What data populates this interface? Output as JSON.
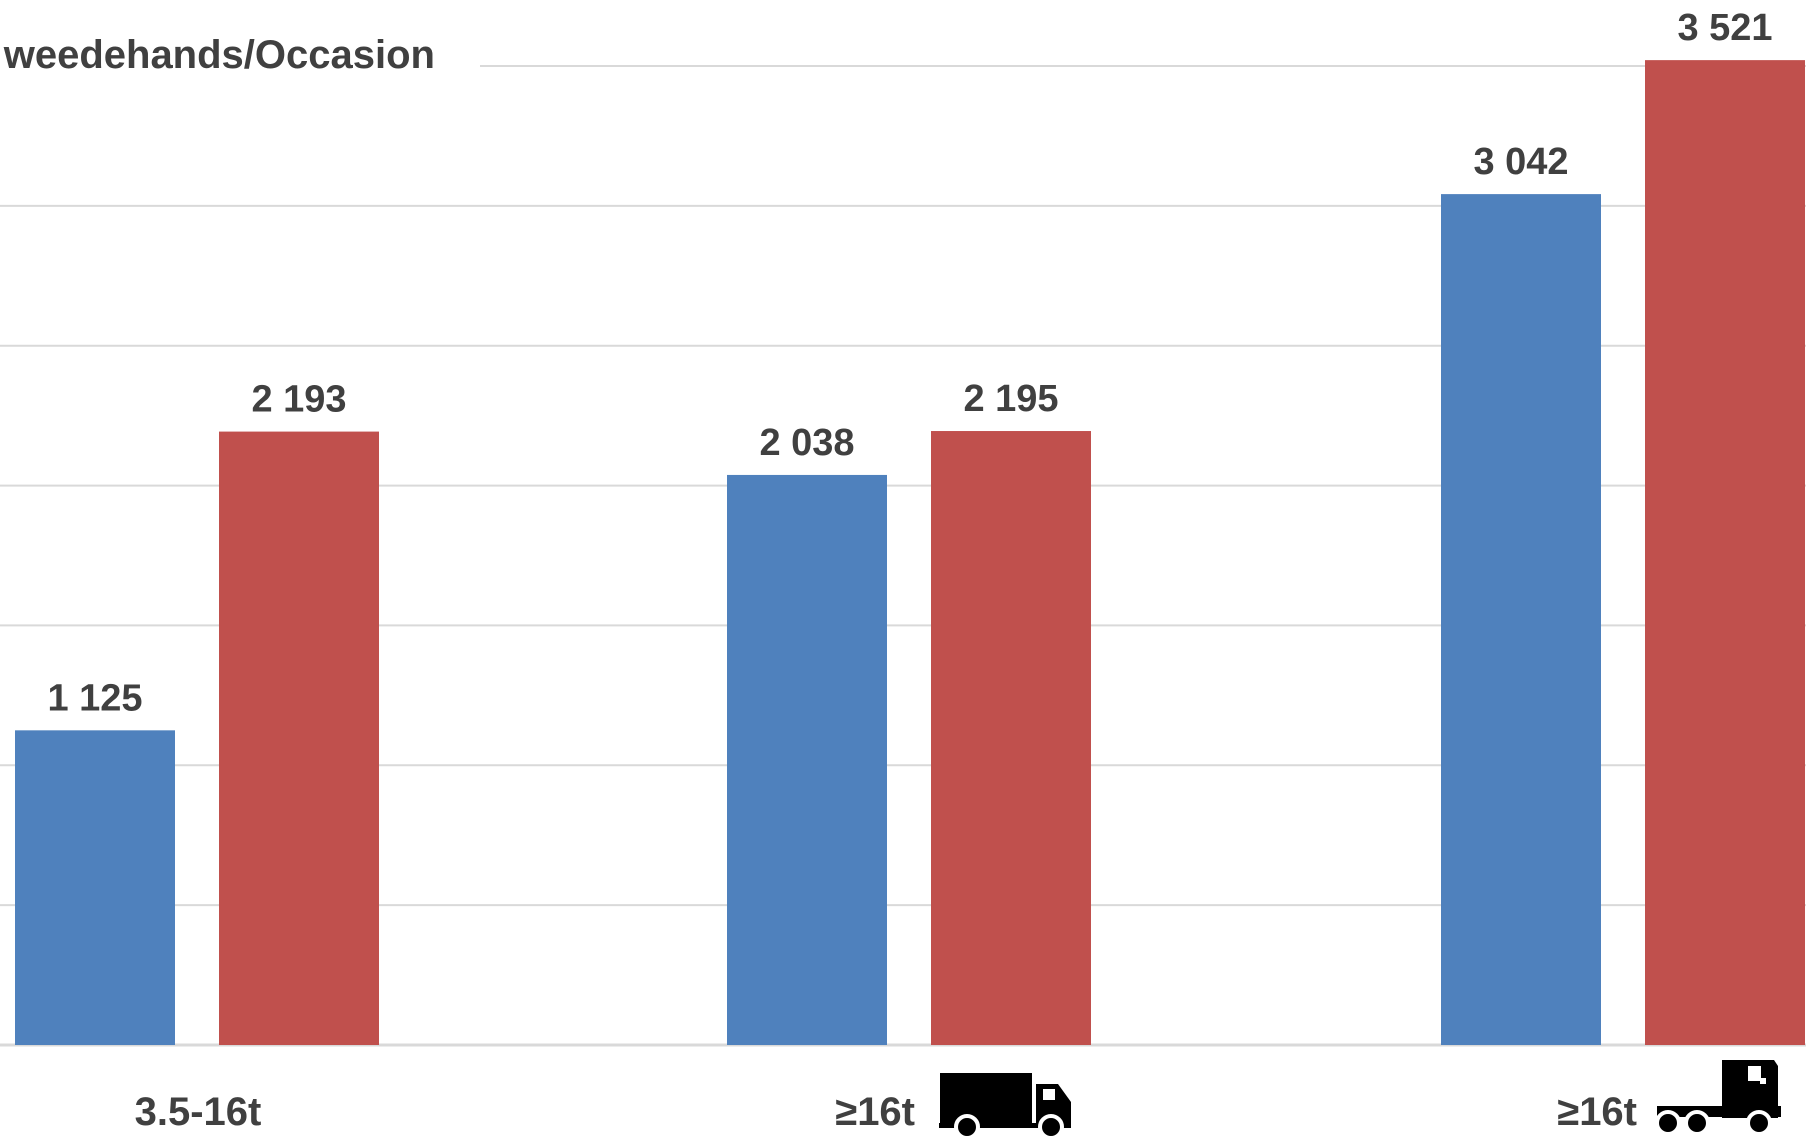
{
  "chart_data": {
    "type": "bar",
    "legend_fragment": "weedehands/Occasion",
    "categories": [
      "3.5-16t",
      "≥16t",
      "≥16t"
    ],
    "category_icons": [
      "",
      "rigid-truck-icon",
      "tractor-unit-icon"
    ],
    "series": [
      {
        "values": [
          1125,
          2038,
          3042
        ],
        "value_labels": [
          "1 125",
          "2 038",
          "3 042"
        ],
        "color": "#4F81BD"
      },
      {
        "values": [
          2193,
          2195,
          3521
        ],
        "value_labels": [
          "2 193",
          "2 195",
          "3 521"
        ],
        "color": "#C0504D"
      }
    ],
    "ylim": [
      0,
      3500
    ],
    "grid": true,
    "legend_position": "top-left",
    "gridline_color": "#d9d9d9",
    "text_color": "#404040",
    "icon_color": "#000000"
  }
}
